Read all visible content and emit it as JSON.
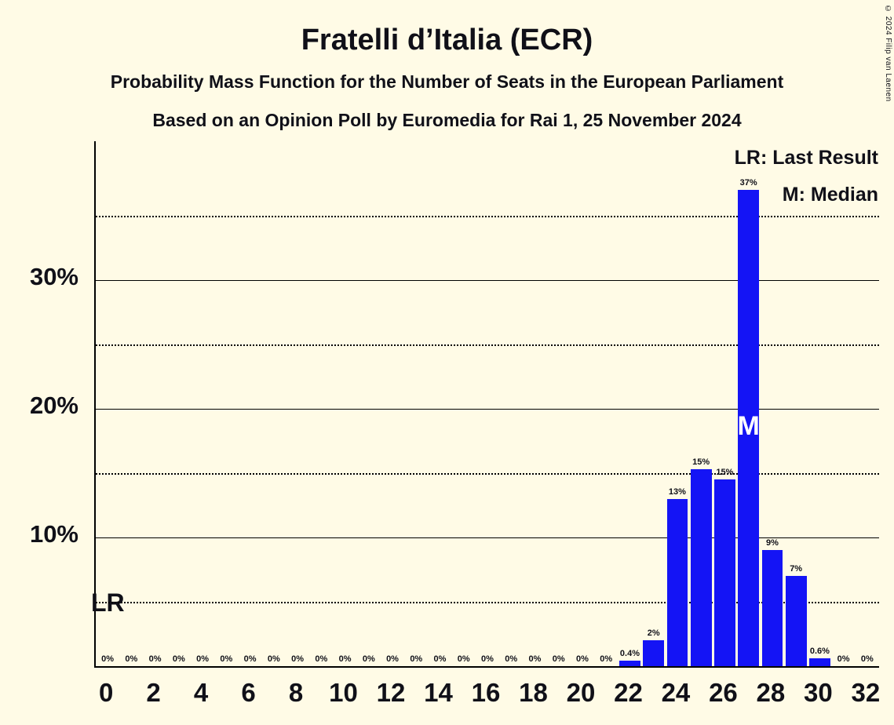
{
  "title": "Fratelli d’Italia (ECR)",
  "subtitle1": "Probability Mass Function for the Number of Seats in the European Parliament",
  "subtitle2": "Based on an Opinion Poll by Euromedia for Rai 1, 25 November 2024",
  "copyright": "© 2024 Filip van Laenen",
  "legend": {
    "lr": "LR: Last Result",
    "m": "M: Median"
  },
  "annotations": {
    "lr_label": "LR",
    "median_label": "M"
  },
  "colors": {
    "background": "#fffbe6",
    "bar": "#1414f5",
    "text": "#101018",
    "median_text": "#ffffff",
    "grid": "#000000"
  },
  "chart_data": {
    "type": "bar",
    "title": "Fratelli d’Italia (ECR)",
    "x": [
      0,
      1,
      2,
      3,
      4,
      5,
      6,
      7,
      8,
      9,
      10,
      11,
      12,
      13,
      14,
      15,
      16,
      17,
      18,
      19,
      20,
      21,
      22,
      23,
      24,
      25,
      26,
      27,
      28,
      29,
      30,
      31,
      32
    ],
    "values": [
      0,
      0,
      0,
      0,
      0,
      0,
      0,
      0,
      0,
      0,
      0,
      0,
      0,
      0,
      0,
      0,
      0,
      0,
      0,
      0,
      0,
      0,
      0.4,
      2,
      13,
      15.3,
      14.5,
      37,
      9,
      7,
      0.6,
      0,
      0
    ],
    "bar_labels": [
      "0%",
      "0%",
      "0%",
      "0%",
      "0%",
      "0%",
      "0%",
      "0%",
      "0%",
      "0%",
      "0%",
      "0%",
      "0%",
      "0%",
      "0%",
      "0%",
      "0%",
      "0%",
      "0%",
      "0%",
      "0%",
      "0%",
      "0.4%",
      "2%",
      "13%",
      "15%",
      "15%",
      "37%",
      "9%",
      "7%",
      "0.6%",
      "0%",
      "0%"
    ],
    "median_x": 27,
    "ylim": [
      0,
      40.8
    ],
    "grid": true,
    "legend_position": "top-right",
    "solid_gridlines_pct": [
      10,
      20,
      30
    ],
    "dotted_gridlines_pct": [
      5,
      15,
      25,
      35
    ],
    "yticks": [
      {
        "v": 10,
        "label": "10%"
      },
      {
        "v": 20,
        "label": "20%"
      },
      {
        "v": 30,
        "label": "30%"
      }
    ],
    "xticks": [
      {
        "v": 0,
        "label": "0"
      },
      {
        "v": 2,
        "label": "2"
      },
      {
        "v": 4,
        "label": "4"
      },
      {
        "v": 6,
        "label": "6"
      },
      {
        "v": 8,
        "label": "8"
      },
      {
        "v": 10,
        "label": "10"
      },
      {
        "v": 12,
        "label": "12"
      },
      {
        "v": 14,
        "label": "14"
      },
      {
        "v": 16,
        "label": "16"
      },
      {
        "v": 18,
        "label": "18"
      },
      {
        "v": 20,
        "label": "20"
      },
      {
        "v": 22,
        "label": "22"
      },
      {
        "v": 24,
        "label": "24"
      },
      {
        "v": 26,
        "label": "26"
      },
      {
        "v": 28,
        "label": "28"
      },
      {
        "v": 30,
        "label": "30"
      },
      {
        "v": 32,
        "label": "32"
      }
    ]
  }
}
